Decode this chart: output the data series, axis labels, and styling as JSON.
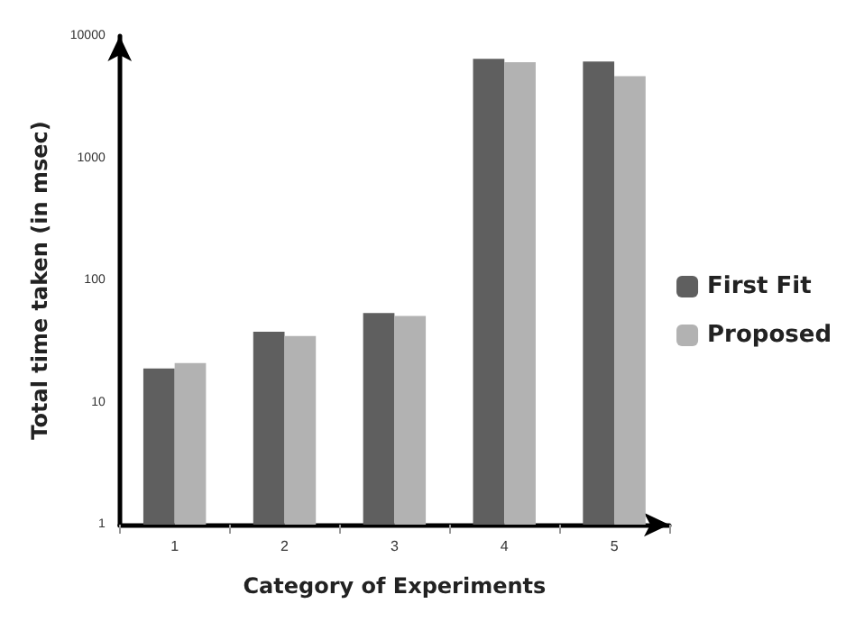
{
  "chart_data": {
    "type": "bar",
    "xlabel": "Category of Experiments",
    "ylabel": "Total time taken (in msec)",
    "categories": [
      "1",
      "2",
      "3",
      "4",
      "5"
    ],
    "series": [
      {
        "name": "First Fit",
        "color": "#5f5f5f",
        "values": [
          19,
          38,
          54,
          6500,
          6200
        ]
      },
      {
        "name": "Proposed",
        "color": "#b2b2b2",
        "values": [
          21,
          35,
          51,
          6100,
          4700
        ]
      }
    ],
    "log": true,
    "ylim": [
      1,
      10000
    ],
    "yticks": [
      1,
      10,
      100,
      1000,
      10000
    ],
    "grid": false,
    "legend": "right"
  }
}
